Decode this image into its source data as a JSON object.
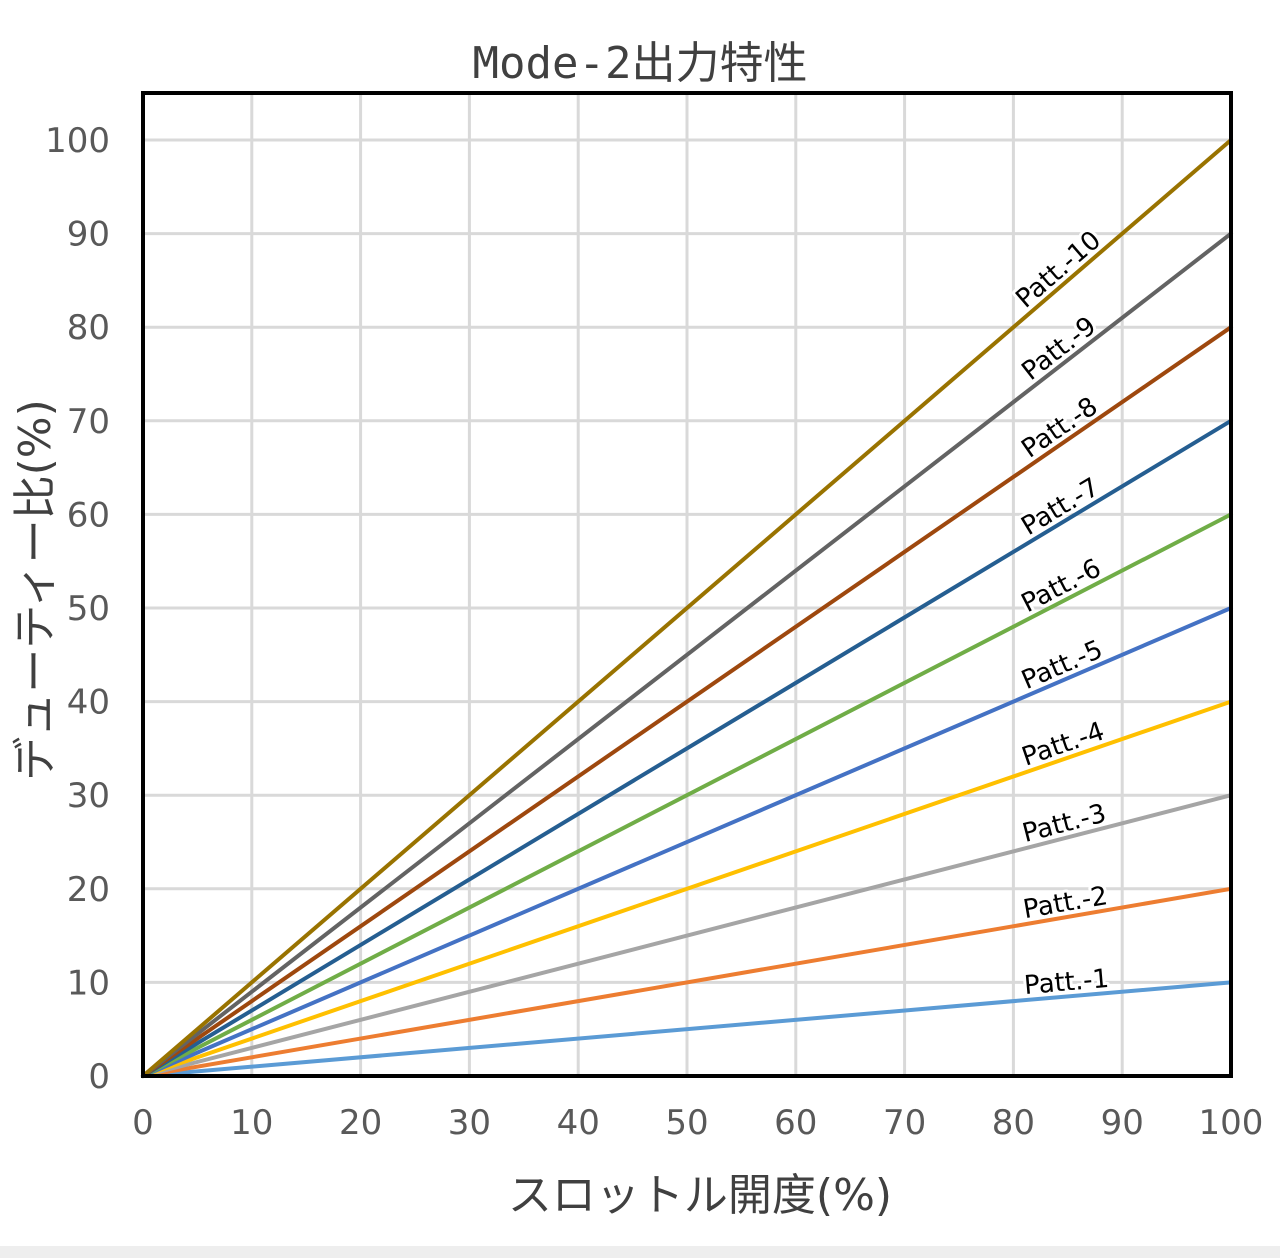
{
  "chart_data": {
    "type": "line",
    "title": "Mode-2出力特性",
    "xlabel": "スロットル開度(%)",
    "ylabel": "デューティー比(%)",
    "xlim": [
      0,
      100
    ],
    "ylim": [
      0,
      100
    ],
    "xticks": [
      "0",
      "10",
      "20",
      "30",
      "40",
      "50",
      "60",
      "70",
      "80",
      "90",
      "100"
    ],
    "yticks": [
      "0",
      "10",
      "20",
      "30",
      "40",
      "50",
      "60",
      "70",
      "80",
      "90",
      "100"
    ],
    "grid": true,
    "x": [
      0,
      100
    ],
    "series": [
      {
        "name": "Patt.-1",
        "values": [
          0,
          10
        ],
        "color": "#5B9BD5"
      },
      {
        "name": "Patt.-2",
        "values": [
          0,
          20
        ],
        "color": "#ED7D31"
      },
      {
        "name": "Patt.-3",
        "values": [
          0,
          30
        ],
        "color": "#A5A5A5"
      },
      {
        "name": "Patt.-4",
        "values": [
          0,
          40
        ],
        "color": "#FFC000"
      },
      {
        "name": "Patt.-5",
        "values": [
          0,
          50
        ],
        "color": "#4472C4"
      },
      {
        "name": "Patt.-6",
        "values": [
          0,
          60
        ],
        "color": "#70AD47"
      },
      {
        "name": "Patt.-7",
        "values": [
          0,
          70
        ],
        "color": "#255E91"
      },
      {
        "name": "Patt.-8",
        "values": [
          0,
          80
        ],
        "color": "#9E480E"
      },
      {
        "name": "Patt.-9",
        "values": [
          0,
          90
        ],
        "color": "#636363"
      },
      {
        "name": "Patt.-10",
        "values": [
          0,
          100
        ],
        "color": "#997300"
      }
    ]
  }
}
